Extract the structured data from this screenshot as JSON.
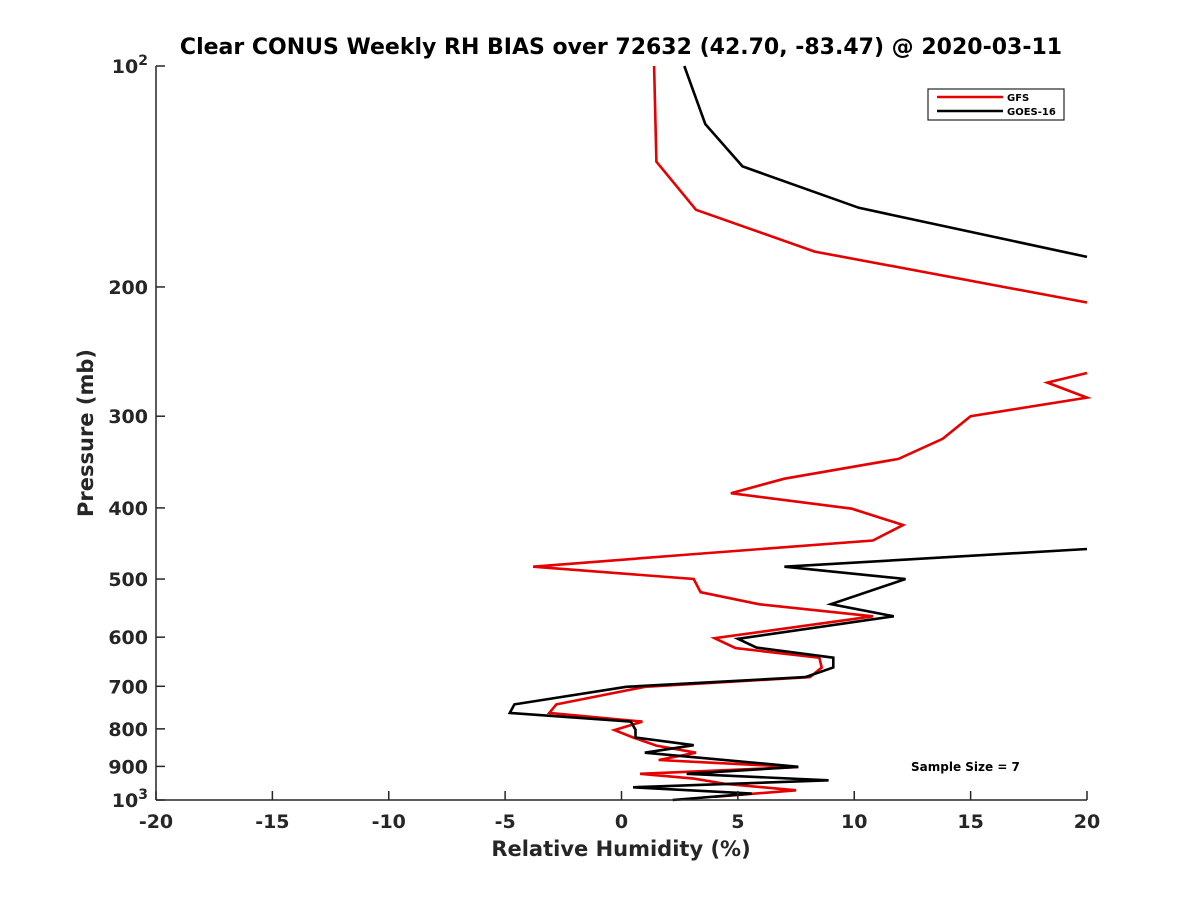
{
  "chart_data": {
    "type": "line",
    "title": "Clear CONUS Weekly RH BIAS over 72632 (42.70, -83.47) @ 2020-03-11",
    "xlabel": "Relative Humidity (%)",
    "ylabel": "Pressure (mb)",
    "xlim": [
      -20,
      20
    ],
    "ylim": [
      100,
      1000
    ],
    "yscale": "log",
    "yreversed": true,
    "grid": false,
    "legend_position": "top-right",
    "x_ticks": [
      {
        "value": -20,
        "label": "-20"
      },
      {
        "value": -15,
        "label": "-15"
      },
      {
        "value": -10,
        "label": "-10"
      },
      {
        "value": -5,
        "label": "-5"
      },
      {
        "value": 0,
        "label": "0"
      },
      {
        "value": 5,
        "label": "5"
      },
      {
        "value": 10,
        "label": "10"
      },
      {
        "value": 15,
        "label": "15"
      },
      {
        "value": 20,
        "label": "20"
      }
    ],
    "y_ticks": [
      {
        "value": 100,
        "base": "10",
        "exp": "2"
      },
      {
        "value": 200,
        "base": "200",
        "exp": ""
      },
      {
        "value": 300,
        "base": "300",
        "exp": ""
      },
      {
        "value": 400,
        "base": "400",
        "exp": ""
      },
      {
        "value": 500,
        "base": "500",
        "exp": ""
      },
      {
        "value": 600,
        "base": "600",
        "exp": ""
      },
      {
        "value": 700,
        "base": "700",
        "exp": ""
      },
      {
        "value": 800,
        "base": "800",
        "exp": ""
      },
      {
        "value": 900,
        "base": "900",
        "exp": ""
      },
      {
        "value": 1000,
        "base": "10",
        "exp": "3"
      }
    ],
    "series": [
      {
        "name": "GFS",
        "color": "#e60000",
        "segments": [
          [
            [
              1.4,
              100
            ],
            [
              1.5,
              135
            ],
            [
              3.2,
              157
            ],
            [
              8.3,
              179
            ],
            [
              20,
              210
            ]
          ],
          [
            [
              20,
              262
            ],
            [
              18.3,
              270
            ],
            [
              20,
              283
            ],
            [
              15,
              300
            ],
            [
              13.8,
              322
            ],
            [
              11.9,
              343
            ],
            [
              7.0,
              365
            ],
            [
              4.7,
              382
            ],
            [
              9.9,
              401
            ],
            [
              12.1,
              422
            ],
            [
              10.8,
              443
            ],
            [
              2.9,
              463
            ],
            [
              -3.8,
              481
            ],
            [
              3.1,
              500
            ],
            [
              3.4,
              521
            ],
            [
              5.9,
              541
            ],
            [
              10.8,
              562
            ],
            [
              4.0,
              602
            ],
            [
              4.9,
              621
            ],
            [
              8.5,
              640
            ],
            [
              8.6,
              660
            ],
            [
              8.1,
              680
            ],
            [
              1.0,
              701
            ],
            [
              -2.8,
              741
            ],
            [
              -3.1,
              761
            ],
            [
              0.9,
              782
            ],
            [
              -0.3,
              803
            ],
            [
              0.5,
              822
            ],
            [
              1.5,
              843
            ],
            [
              3.2,
              862
            ],
            [
              1.6,
              882
            ],
            [
              7.6,
              902
            ],
            [
              0.8,
              921
            ],
            [
              3.1,
              935
            ],
            [
              4.5,
              951
            ],
            [
              7.5,
              970
            ],
            [
              4.0,
              990
            ]
          ]
        ]
      },
      {
        "name": "GOES-16",
        "color": "#000000",
        "segments": [
          [
            [
              2.7,
              100
            ],
            [
              3.6,
              120
            ],
            [
              5.2,
              137
            ],
            [
              10.2,
              156
            ],
            [
              20,
              182
            ]
          ],
          [
            [
              20,
              455
            ],
            [
              7.0,
              481
            ],
            [
              12.2,
              500
            ],
            [
              9.0,
              541
            ],
            [
              11.7,
              562
            ],
            [
              5.0,
              603
            ],
            [
              5.8,
              620
            ],
            [
              9.1,
              640
            ],
            [
              9.1,
              660
            ],
            [
              7.9,
              680
            ],
            [
              0.2,
              701
            ],
            [
              -4.6,
              741
            ],
            [
              -4.8,
              761
            ],
            [
              0.4,
              782
            ],
            [
              0.6,
              802
            ],
            [
              0.6,
              822
            ],
            [
              3.1,
              842
            ],
            [
              1.0,
              862
            ],
            [
              7.6,
              901
            ],
            [
              2.8,
              921
            ],
            [
              8.9,
              940
            ],
            [
              0.5,
              961
            ],
            [
              5.6,
              980
            ],
            [
              2.2,
              1000
            ]
          ]
        ]
      }
    ],
    "annotations": [
      {
        "text": "Sample Size = 7"
      }
    ]
  }
}
